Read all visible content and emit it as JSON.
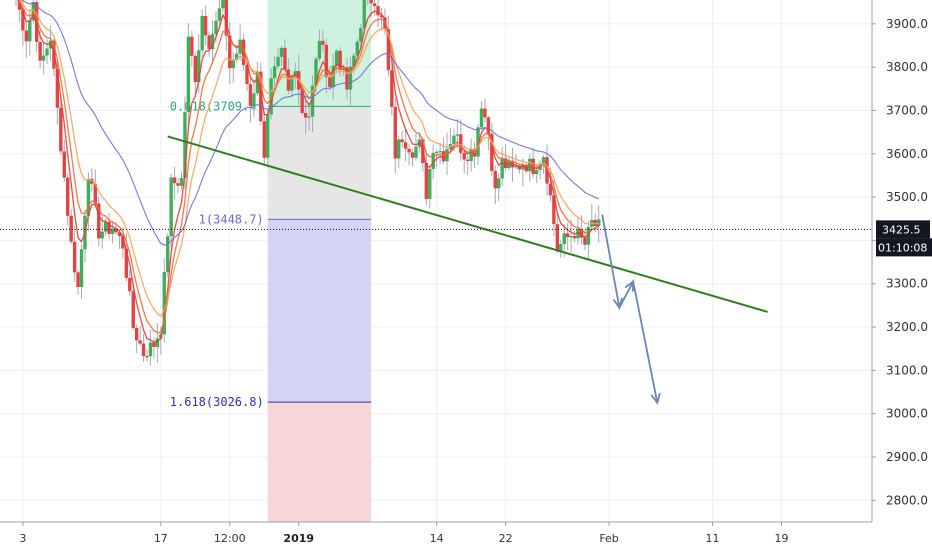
{
  "chart_data": {
    "type": "candlestick",
    "y_axis": {
      "min": 2750,
      "max": 3955,
      "ticks": [
        {
          "value": 2800,
          "label": "2800.0"
        },
        {
          "value": 2900,
          "label": "2900.0"
        },
        {
          "value": 3000,
          "label": "3000.0"
        },
        {
          "value": 3100,
          "label": "3100.0"
        },
        {
          "value": 3200,
          "label": "3200.0"
        },
        {
          "value": 3300,
          "label": "3300.0"
        },
        {
          "value": 3400,
          "label": "3400.0"
        },
        {
          "value": 3500,
          "label": "3500.0"
        },
        {
          "value": 3600,
          "label": "3600.0"
        },
        {
          "value": 3700,
          "label": "3700.0"
        },
        {
          "value": 3800,
          "label": "3800.0"
        },
        {
          "value": 3900,
          "label": "3900.0"
        }
      ]
    },
    "x_axis": {
      "min": 0,
      "max": 250,
      "ticks": [
        {
          "pos": 2,
          "label": "3",
          "bold": false
        },
        {
          "pos": 42,
          "label": "17",
          "bold": false
        },
        {
          "pos": 62,
          "label": "12:00",
          "bold": false
        },
        {
          "pos": 82,
          "label": "2019",
          "bold": true
        },
        {
          "pos": 122,
          "label": "14",
          "bold": false
        },
        {
          "pos": 142,
          "label": "22",
          "bold": false
        },
        {
          "pos": 172,
          "label": "Feb",
          "bold": false
        },
        {
          "pos": 202,
          "label": "11",
          "bold": false
        },
        {
          "pos": 222,
          "label": "19",
          "bold": false
        }
      ]
    },
    "grid": true,
    "candle_keypoints": [
      [
        0,
        3960
      ],
      [
        3,
        3870
      ],
      [
        5,
        3950
      ],
      [
        7,
        3800
      ],
      [
        10,
        3870
      ],
      [
        12,
        3700
      ],
      [
        16,
        3390
      ],
      [
        18,
        3290
      ],
      [
        21,
        3560
      ],
      [
        24,
        3420
      ],
      [
        28,
        3430
      ],
      [
        31,
        3390
      ],
      [
        34,
        3200
      ],
      [
        37,
        3140
      ],
      [
        40,
        3160
      ],
      [
        42,
        3200
      ],
      [
        45,
        3530
      ],
      [
        48,
        3540
      ],
      [
        50,
        3860
      ],
      [
        52,
        3780
      ],
      [
        54,
        3920
      ],
      [
        56,
        3860
      ],
      [
        58,
        3900
      ],
      [
        60,
        3960
      ],
      [
        62,
        3800
      ],
      [
        65,
        3850
      ],
      [
        68,
        3720
      ],
      [
        70,
        3780
      ],
      [
        72,
        3600
      ],
      [
        74,
        3760
      ],
      [
        77,
        3830
      ],
      [
        79,
        3740
      ],
      [
        81,
        3810
      ],
      [
        83,
        3700
      ],
      [
        85,
        3690
      ],
      [
        88,
        3870
      ],
      [
        91,
        3760
      ],
      [
        93,
        3840
      ],
      [
        96,
        3750
      ],
      [
        99,
        3860
      ],
      [
        101,
        3950
      ],
      [
        104,
        3960
      ],
      [
        107,
        3880
      ],
      [
        110,
        3600
      ],
      [
        112,
        3640
      ],
      [
        115,
        3610
      ],
      [
        117,
        3620
      ],
      [
        119,
        3510
      ],
      [
        121,
        3620
      ],
      [
        124,
        3600
      ],
      [
        127,
        3650
      ],
      [
        130,
        3600
      ],
      [
        133,
        3610
      ],
      [
        135,
        3720
      ],
      [
        137,
        3650
      ],
      [
        139,
        3510
      ],
      [
        141,
        3580
      ],
      [
        144,
        3560
      ],
      [
        147,
        3580
      ],
      [
        150,
        3570
      ],
      [
        153,
        3600
      ],
      [
        155,
        3500
      ],
      [
        157,
        3380
      ],
      [
        159,
        3400
      ],
      [
        162,
        3420
      ],
      [
        165,
        3390
      ],
      [
        167,
        3440
      ],
      [
        169,
        3430
      ]
    ],
    "moving_average_colors": [
      "#e53935",
      "#ef6c35",
      "#f4a460",
      "#6a6ad9"
    ],
    "trendline": {
      "x": [
        44,
        218
      ],
      "y": [
        3640,
        3235
      ],
      "color": "#2e7d1f"
    },
    "projection_arrows": {
      "color": "#6a86b8",
      "points": [
        [
          170,
          3460
        ],
        [
          175,
          3245
        ],
        [
          179,
          3305
        ],
        [
          186,
          3025
        ]
      ]
    },
    "fibonacci": {
      "x_start": 73,
      "x_end": 103,
      "levels": [
        {
          "label": "0.618(3709.4)",
          "value": 3709.4,
          "color": "#2aa67a"
        },
        {
          "label": "1(3448.7)",
          "value": 3448.7,
          "color": "#6a6ad9"
        },
        {
          "label": "1.618(3026.8)",
          "value": 3026.8,
          "color": "#2f2fb0"
        }
      ]
    },
    "current_price": {
      "value": 3425.5,
      "label": "3425.5",
      "countdown": "01:10:08"
    }
  }
}
